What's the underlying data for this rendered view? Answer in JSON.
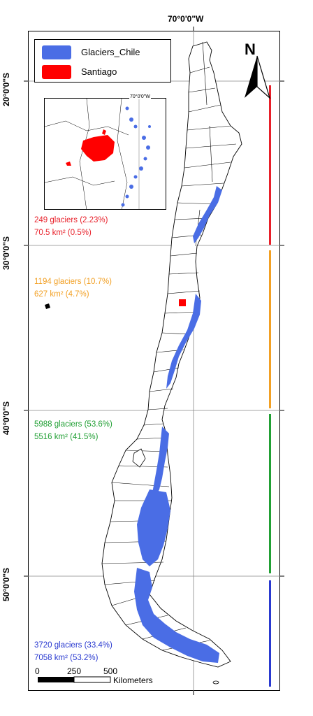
{
  "map": {
    "top_lon_label": "70°0'0\"W",
    "lat_labels": [
      "20°0'0\"S",
      "30°0'0\"S",
      "40°0'0\"S",
      "50°0'0\"S"
    ],
    "north_label": "N"
  },
  "legend": {
    "items": [
      {
        "label": "Glaciers_Chile",
        "color": "#4a6de5"
      },
      {
        "label": "Santiago",
        "color": "#ff0000"
      }
    ]
  },
  "inset": {
    "lon_label": "70°0'0\"W"
  },
  "zones": [
    {
      "count_text": "249 glaciers (2.23%)",
      "area_text": "70.5 km² (0.5%)",
      "color": "#e8202a"
    },
    {
      "count_text": "1194 glaciers (10.7%)",
      "area_text": "627 km² (4.7%)",
      "color": "#f2a024"
    },
    {
      "count_text": "5988 glaciers (53.6%)",
      "area_text": "5516 km² (41.5%)",
      "color": "#22a035"
    },
    {
      "count_text": "3720 glaciers (33.4%)",
      "area_text": "7058 km² (53.2%)",
      "color": "#2a3ad0"
    }
  ],
  "scale_bar": {
    "labels": [
      "0",
      "250",
      "500"
    ],
    "unit": "Kilometers"
  }
}
